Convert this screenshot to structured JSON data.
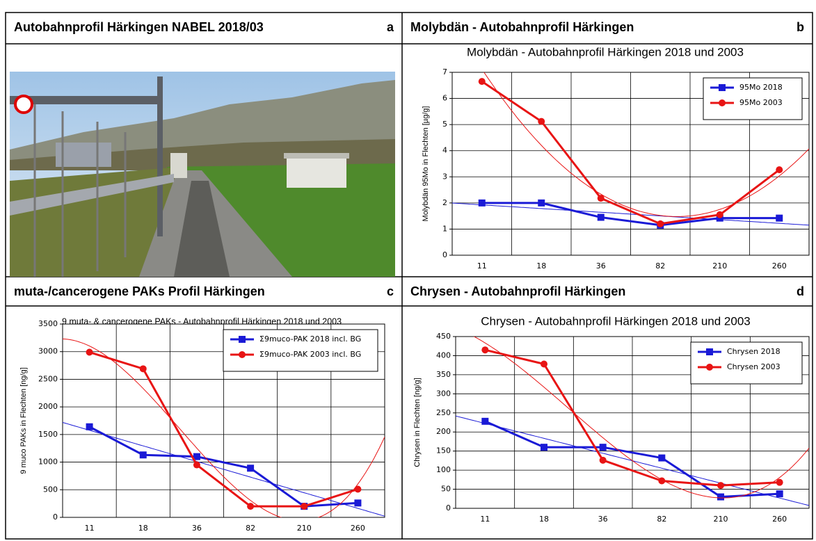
{
  "panels": [
    {
      "title": "Autobahnprofil Härkingen NABEL 2018/03",
      "letter": "a"
    },
    {
      "title": "Molybdän - Autobahnprofil Härkingen",
      "letter": "b"
    },
    {
      "title": "muta-/cancerogene PAKs Profil Härkingen",
      "letter": "c"
    },
    {
      "title": "Chrysen - Autobahnprofil Härkingen",
      "letter": "d"
    }
  ],
  "chart_data": [
    {
      "type": "line",
      "title": "Molybdän - Autobahnprofil Härkingen 2018 und 2003",
      "y_label": "Molybdän 95Mo in Flechten [µg/g]",
      "categories": [
        "11",
        "18",
        "36",
        "82",
        "210",
        "260"
      ],
      "ylim": [
        0,
        7
      ],
      "yticks": [
        0,
        1,
        2,
        3,
        4,
        5,
        6,
        7
      ],
      "grid": true,
      "legend": "upper right",
      "series": [
        {
          "name": "95Mo 2018",
          "color": "#1a1ad6",
          "marker": "square",
          "trendline_degree": 1,
          "values": [
            2.0,
            2.0,
            1.45,
            1.15,
            1.42,
            1.42
          ]
        },
        {
          "name": "95Mo 2003",
          "color": "#e81414",
          "marker": "circle",
          "trendline_degree": 2,
          "values": [
            6.65,
            5.12,
            2.18,
            1.2,
            1.55,
            3.27
          ]
        }
      ]
    },
    {
      "type": "line",
      "title": "9 muta- & cancerogene PAKs - Autobahnprofil Härkingen 2018 und  2003",
      "y_label": "9 muco PAKs in Flechten [ng/g]",
      "categories": [
        "11",
        "18",
        "36",
        "82",
        "210",
        "260"
      ],
      "ylim": [
        0,
        3500
      ],
      "yticks": [
        0,
        500,
        1000,
        1500,
        2000,
        2500,
        3000,
        3500
      ],
      "grid": true,
      "legend": "upper right",
      "series": [
        {
          "name": "Σ9muco-PAK 2018 incl. BG",
          "color": "#1a1ad6",
          "marker": "square",
          "trendline_degree": 1,
          "values": [
            1640,
            1130,
            1100,
            890,
            200,
            260
          ]
        },
        {
          "name": "Σ9muco-PAK 2003 incl. BG",
          "color": "#e81414",
          "marker": "circle",
          "trendline_degree": 3,
          "values": [
            2990,
            2690,
            950,
            200,
            200,
            510
          ]
        }
      ]
    },
    {
      "type": "line",
      "title": "Chrysen - Autobahnprofil Härkingen 2018 und 2003",
      "y_label": "Chrysen in Flechten [ng/g]",
      "categories": [
        "11",
        "18",
        "36",
        "82",
        "210",
        "260"
      ],
      "ylim": [
        0,
        450
      ],
      "yticks": [
        0,
        50,
        100,
        150,
        200,
        250,
        300,
        350,
        400,
        450
      ],
      "grid": true,
      "legend": "upper right",
      "series": [
        {
          "name": "Chrysen 2018",
          "color": "#1a1ad6",
          "marker": "square",
          "trendline_degree": 1,
          "values": [
            228,
            160,
            160,
            132,
            30,
            38
          ]
        },
        {
          "name": "Chrysen 2003",
          "color": "#e81414",
          "marker": "circle",
          "trendline_degree": 3,
          "values": [
            415,
            378,
            126,
            72,
            60,
            68
          ]
        }
      ]
    }
  ]
}
